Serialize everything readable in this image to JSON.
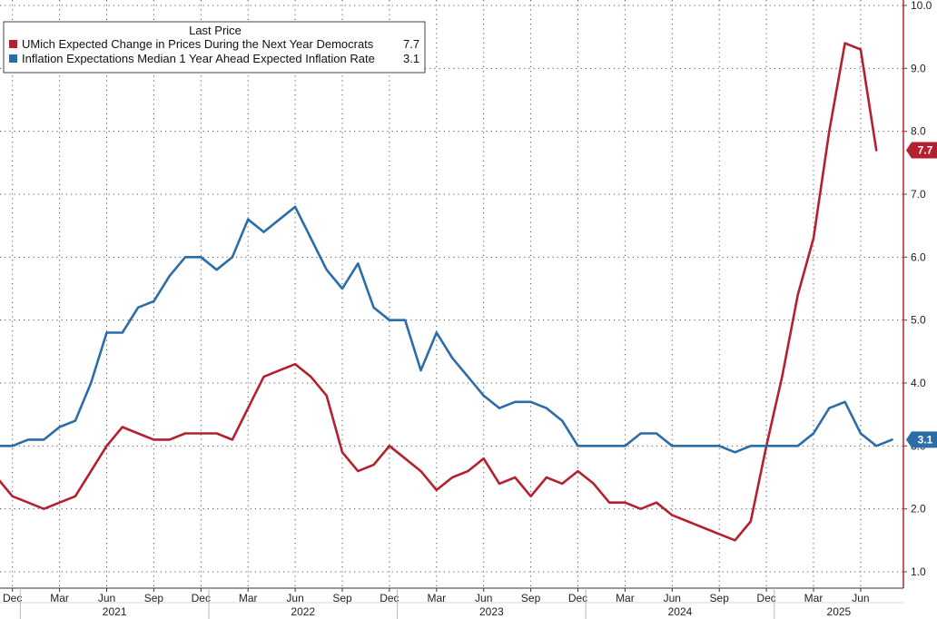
{
  "chart_data": {
    "type": "line",
    "legend": {
      "title": "Last Price",
      "placement": "top-left"
    },
    "grid": true,
    "ylim": [
      1.0,
      10.0
    ],
    "yticks": [
      "1.0",
      "2.0",
      "3.0",
      "4.0",
      "5.0",
      "6.0",
      "7.0",
      "8.0",
      "9.0",
      "10.0"
    ],
    "x_month_labels": [
      "Dec",
      "Mar",
      "Jun",
      "Sep",
      "Dec",
      "Mar",
      "Jun",
      "Sep",
      "Dec",
      "Mar",
      "Jun",
      "Sep",
      "Dec",
      "Mar",
      "Jun",
      "Sep",
      "Dec",
      "Mar",
      "Jun"
    ],
    "x_year_labels": [
      "2021",
      "2022",
      "2023",
      "2024",
      "2025"
    ],
    "x_start": "2020-11",
    "series": [
      {
        "name": "UMich Expected Change in Prices During the Next Year Democrats",
        "last_value": "7.7",
        "color": "#b5202e",
        "values": [
          2.5,
          2.2,
          2.1,
          2.0,
          2.1,
          2.2,
          2.6,
          3.0,
          3.3,
          3.2,
          3.1,
          3.1,
          3.2,
          3.2,
          3.2,
          3.1,
          3.6,
          4.1,
          4.2,
          4.3,
          4.1,
          3.8,
          2.9,
          2.6,
          2.7,
          3.0,
          2.8,
          2.6,
          2.3,
          2.5,
          2.6,
          2.8,
          2.4,
          2.5,
          2.2,
          2.5,
          2.4,
          2.6,
          2.4,
          2.1,
          2.1,
          2.0,
          2.1,
          1.9,
          1.8,
          1.7,
          1.6,
          1.5,
          1.8,
          3.0,
          4.1,
          5.4,
          6.3,
          8.0,
          9.4,
          9.3,
          7.7
        ]
      },
      {
        "name": "Inflation Expectations Median 1 Year Ahead Expected Inflation Rate",
        "last_value": "3.1",
        "color": "#2b6da8",
        "values": [
          3.0,
          3.0,
          3.1,
          3.1,
          3.3,
          3.4,
          4.0,
          4.8,
          4.8,
          5.2,
          5.3,
          5.7,
          6.0,
          6.0,
          5.8,
          6.0,
          6.6,
          6.4,
          6.6,
          6.8,
          6.3,
          5.8,
          5.5,
          5.9,
          5.2,
          5.0,
          5.0,
          4.2,
          4.8,
          4.4,
          4.1,
          3.8,
          3.6,
          3.7,
          3.7,
          3.6,
          3.4,
          3.0,
          3.0,
          3.0,
          3.0,
          3.2,
          3.2,
          3.0,
          3.0,
          3.0,
          3.0,
          2.9,
          3.0,
          3.0,
          3.0,
          3.0,
          3.2,
          3.6,
          3.7,
          3.2,
          3.0,
          3.1
        ]
      }
    ]
  }
}
